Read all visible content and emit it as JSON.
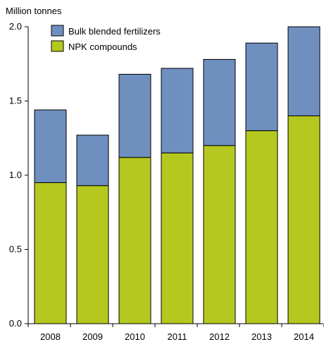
{
  "chart_data": {
    "type": "bar",
    "stacked": true,
    "ylabel": "Million tonnes",
    "categories": [
      "2008",
      "2009",
      "2010",
      "2011",
      "2012",
      "2013",
      "2014"
    ],
    "y_ticks": [
      "0.0",
      "0.5",
      "1.0",
      "1.5",
      "2.0"
    ],
    "ylim": [
      0,
      2.0
    ],
    "grid": false,
    "legend_position": "top-left",
    "series": [
      {
        "name": "NPK compounds",
        "color": "#b5c81f",
        "values": [
          0.95,
          0.93,
          1.12,
          1.15,
          1.2,
          1.3,
          1.4
        ]
      },
      {
        "name": "Bulk blended fertilizers",
        "color": "#6f8fbf",
        "values": [
          0.49,
          0.34,
          0.56,
          0.57,
          0.58,
          0.59,
          0.6
        ]
      }
    ]
  }
}
